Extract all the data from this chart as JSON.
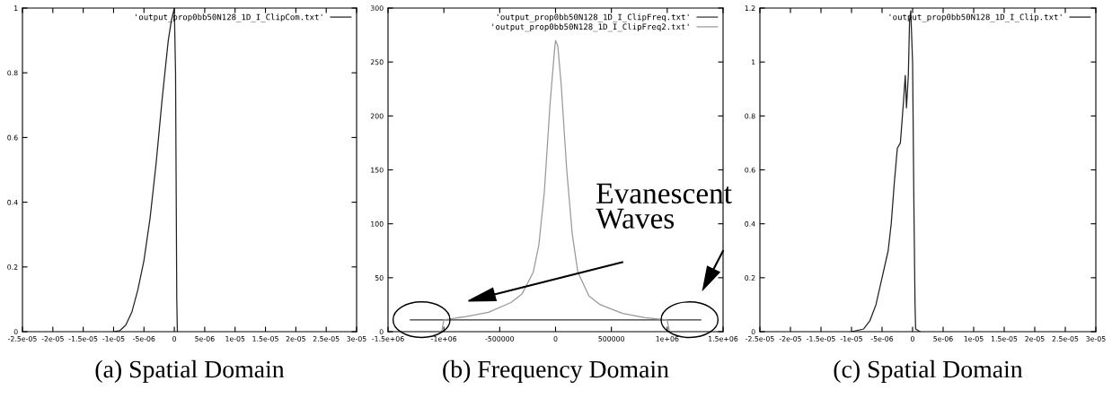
{
  "chart_data": [
    {
      "type": "line",
      "xlabel": "(a) Spatial Domain",
      "legend": "top right",
      "grid": false,
      "xlim": [
        -2.5e-05,
        3e-05
      ],
      "ylim": [
        0,
        1
      ],
      "xticks": [
        {
          "value": -2.5e-05,
          "label": "-2.5e-05"
        },
        {
          "value": -2e-05,
          "label": "-2e-05"
        },
        {
          "value": -1.5e-05,
          "label": "-1.5e-05"
        },
        {
          "value": -1e-05,
          "label": "-1e-05"
        },
        {
          "value": -5e-06,
          "label": "-5e-06"
        },
        0,
        {
          "value": 5e-06,
          "label": "5e-06"
        },
        {
          "value": 1e-05,
          "label": "1e-05"
        },
        {
          "value": 1.5e-05,
          "label": "1.5e-05"
        },
        {
          "value": 2e-05,
          "label": "2e-05"
        },
        {
          "value": 2.5e-05,
          "label": "2.5e-05"
        },
        {
          "value": 3e-05,
          "label": "3e-05"
        }
      ],
      "yticks": [
        0,
        0.2,
        0.4,
        0.6,
        0.8,
        1
      ],
      "series": [
        {
          "name": "'output_prop0bb50N128_1D_I_ClipCom.txt'",
          "color": "#222222",
          "x": [
            -1e-05,
            -9e-06,
            -8e-06,
            -7e-06,
            -6e-06,
            -5e-06,
            -4e-06,
            -3e-06,
            -2e-06,
            -1e-06,
            -5e-07,
            0,
            2e-07,
            4e-07,
            5e-07
          ],
          "values": [
            0,
            0.003,
            0.02,
            0.06,
            0.13,
            0.22,
            0.35,
            0.52,
            0.72,
            0.9,
            0.96,
            1,
            0.8,
            0.1,
            0
          ]
        }
      ]
    },
    {
      "type": "line",
      "xlabel": "(b) Frequency Domain",
      "legend": "top right",
      "grid": false,
      "annotations": [
        "Evanescent\nWaves"
      ],
      "xlim": [
        -1500000,
        1500000
      ],
      "ylim": [
        0,
        300
      ],
      "xticks": [
        {
          "value": -1500000,
          "label": "-1.5e+06"
        },
        {
          "value": -1000000,
          "label": "-1e+06"
        },
        -500000,
        0,
        500000,
        {
          "value": 1000000,
          "label": "1e+06"
        },
        {
          "value": 1500000,
          "label": "1.5e+06"
        }
      ],
      "yticks": [
        0,
        50,
        100,
        150,
        200,
        250,
        300
      ],
      "series": [
        {
          "name": "'output_prop0bb50N128_1D_I_ClipFreq.txt'",
          "color": "#333333",
          "x": [
            -1300000,
            1300000
          ],
          "values": [
            11,
            11
          ]
        },
        {
          "name": "'output_prop0bb50N128_1D_I_ClipFreq2.txt'",
          "color": "#999999",
          "x": [
            -1020000,
            -1000000,
            -800000,
            -600000,
            -400000,
            -300000,
            -200000,
            -150000,
            -100000,
            -50000,
            -10000,
            0,
            20000,
            50000,
            100000,
            150000,
            200000,
            300000,
            400000,
            600000,
            800000,
            1000000,
            1020000
          ],
          "values": [
            0,
            11,
            14,
            18,
            27,
            35,
            55,
            80,
            130,
            210,
            260,
            270,
            265,
            230,
            150,
            90,
            55,
            33,
            25,
            17,
            13,
            11,
            0
          ]
        }
      ]
    },
    {
      "type": "line",
      "xlabel": "(c) Spatial Domain",
      "legend": "top right",
      "grid": false,
      "xlim": [
        -2.5e-05,
        3e-05
      ],
      "ylim": [
        0,
        1.2
      ],
      "xticks": [
        {
          "value": -2.5e-05,
          "label": "-2.5e-05"
        },
        {
          "value": -2e-05,
          "label": "-2e-05"
        },
        {
          "value": -1.5e-05,
          "label": "-1.5e-05"
        },
        {
          "value": -1e-05,
          "label": "-1e-05"
        },
        {
          "value": -5e-06,
          "label": "-5e-06"
        },
        0,
        {
          "value": 5e-06,
          "label": "5e-06"
        },
        {
          "value": 1e-05,
          "label": "1e-05"
        },
        {
          "value": 1.5e-05,
          "label": "1.5e-05"
        },
        {
          "value": 2e-05,
          "label": "2e-05"
        },
        {
          "value": 2.5e-05,
          "label": "2.5e-05"
        },
        {
          "value": 3e-05,
          "label": "3e-05"
        }
      ],
      "yticks": [
        0,
        0.2,
        0.4,
        0.6,
        0.8,
        1,
        1.2
      ],
      "series": [
        {
          "name": "'output_prop0bb50N128_1D_I_Clip.txt'",
          "color": "#222222",
          "x": [
            -1e-05,
            -8e-06,
            -7e-06,
            -6e-06,
            -5e-06,
            -4e-06,
            -3.5e-06,
            -3e-06,
            -2.5e-06,
            -2e-06,
            -1.5e-06,
            -1.2e-06,
            -1e-06,
            -7e-07,
            -5e-07,
            -3e-07,
            0,
            2e-07,
            4e-07,
            5e-07,
            1.2e-06
          ],
          "values": [
            0,
            0.01,
            0.04,
            0.1,
            0.2,
            0.3,
            0.4,
            0.55,
            0.68,
            0.7,
            0.85,
            0.95,
            0.83,
            0.95,
            1.15,
            1.19,
            1.0,
            0.5,
            0.1,
            0.01,
            0
          ]
        }
      ]
    }
  ]
}
